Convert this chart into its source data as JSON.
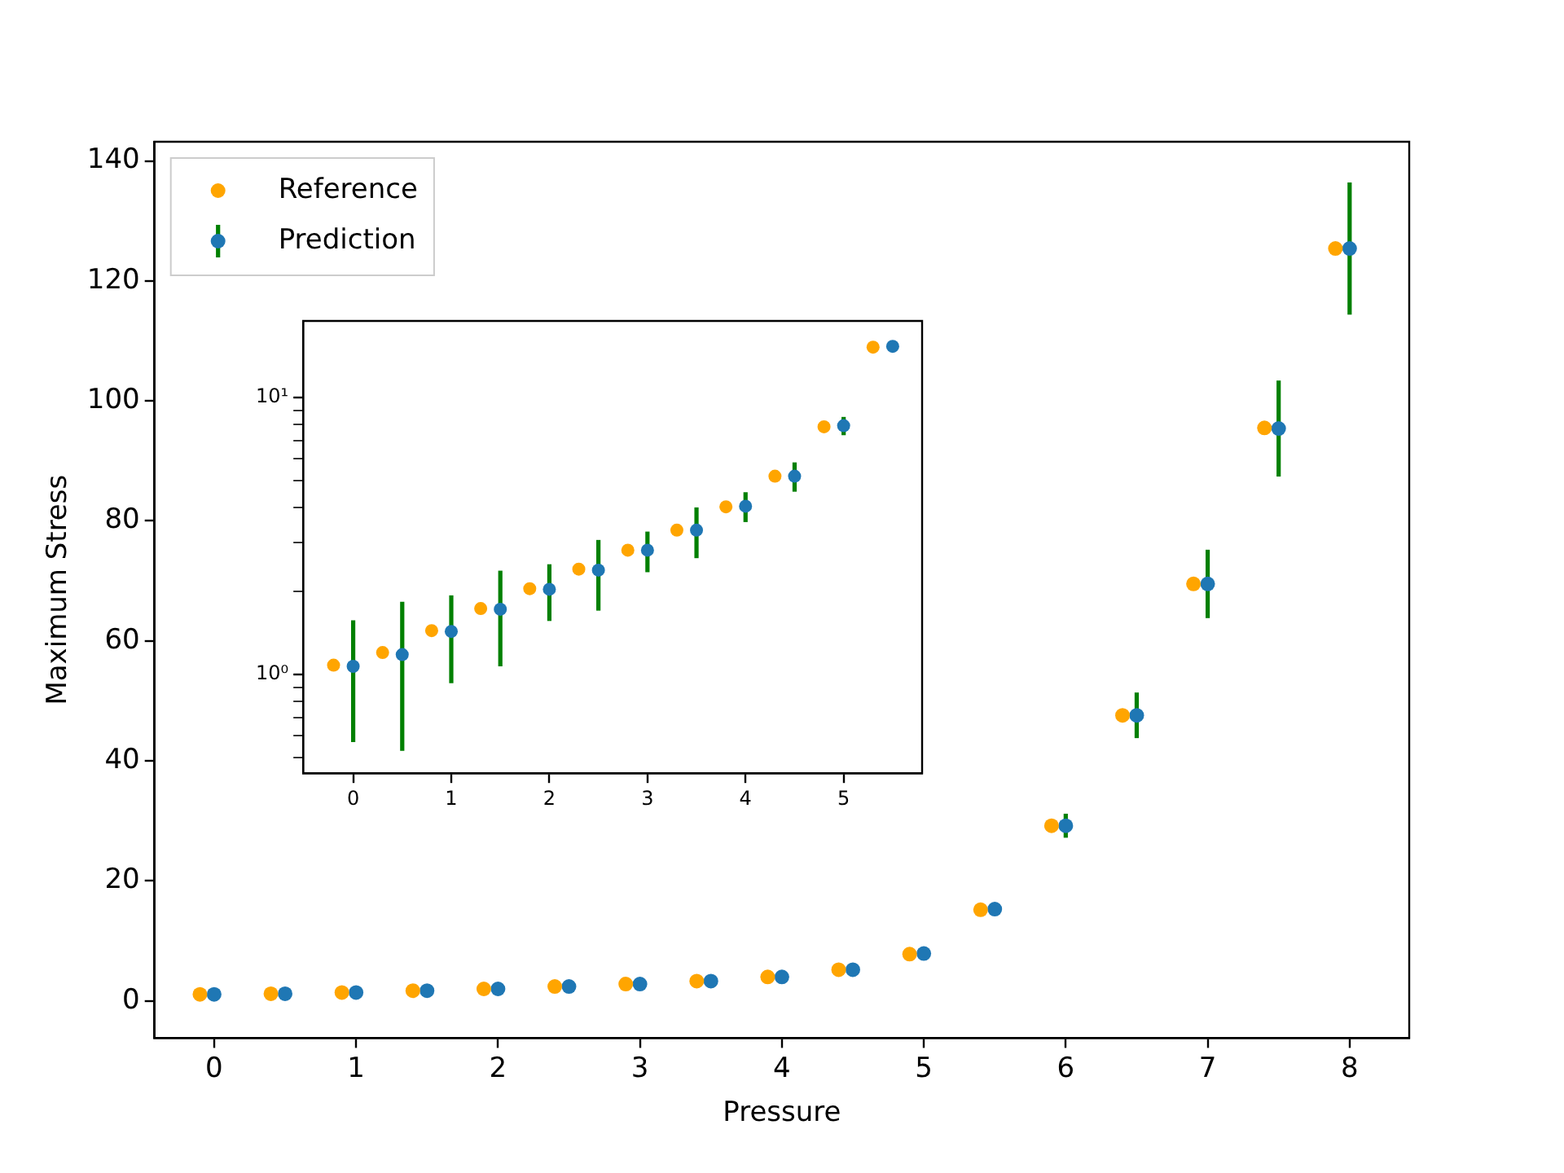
{
  "chart_data": [
    {
      "type": "scatter",
      "xlabel": "Pressure",
      "ylabel": "Maximum Stress",
      "xlim": [
        -0.42,
        8.42
      ],
      "ylim": [
        -6.2,
        143.2
      ],
      "xticks": [
        0,
        1,
        2,
        3,
        4,
        5,
        6,
        7,
        8
      ],
      "yticks": [
        0,
        20,
        40,
        60,
        80,
        100,
        120,
        140
      ],
      "legend": "top left",
      "marker": "circle",
      "grid": false,
      "series": [
        {
          "name": "Reference",
          "color": "#ffa500",
          "x": [
            -0.1,
            0.4,
            0.9,
            1.4,
            1.9,
            2.4,
            2.9,
            3.4,
            3.9,
            4.4,
            4.9,
            5.4,
            5.9,
            6.4,
            6.9,
            7.4,
            7.9
          ],
          "values": [
            1.1,
            1.2,
            1.4,
            1.7,
            2.0,
            2.4,
            2.8,
            3.3,
            4.0,
            5.2,
            7.8,
            15.2,
            29.2,
            47.6,
            69.5,
            95.5,
            125.4
          ]
        },
        {
          "name": "Prediction",
          "color": "#1f77b4",
          "x": [
            0,
            0.5,
            1,
            1.5,
            2,
            2.5,
            3,
            3.5,
            4,
            4.5,
            5,
            5.5,
            6,
            6.5,
            7,
            7.5,
            8
          ],
          "values": [
            1.1,
            1.2,
            1.4,
            1.7,
            2.0,
            2.4,
            2.8,
            3.3,
            4.0,
            5.2,
            7.9,
            15.3,
            29.2,
            47.6,
            69.5,
            95.4,
            125.4
          ],
          "errors": [
            null,
            null,
            null,
            null,
            null,
            null,
            null,
            null,
            null,
            null,
            null,
            null,
            2,
            3.8,
            5.7,
            8,
            11
          ]
        }
      ]
    },
    {
      "type": "scatter",
      "log": "y",
      "xlim": [
        -0.51,
        5.8
      ],
      "ylim": [
        0.44,
        18.9
      ],
      "xticks": [
        0,
        1,
        2,
        3,
        4,
        5
      ],
      "yticks": [
        {
          "value": 0.5,
          "label": null
        },
        {
          "value": 0.6,
          "label": null
        },
        {
          "value": 0.7,
          "label": null
        },
        {
          "value": 0.8,
          "label": null
        },
        {
          "value": 0.9,
          "label": null
        },
        {
          "value": 1,
          "label": "10⁰"
        },
        {
          "value": 2,
          "label": null
        },
        {
          "value": 3,
          "label": null
        },
        {
          "value": 4,
          "label": null
        },
        {
          "value": 5,
          "label": null
        },
        {
          "value": 6,
          "label": null
        },
        {
          "value": 7,
          "label": null
        },
        {
          "value": 8,
          "label": null
        },
        {
          "value": 9,
          "label": null
        },
        {
          "value": 10,
          "label": "10¹"
        }
      ],
      "marker": "circle",
      "grid": false,
      "series": [
        {
          "color": "#ffa500",
          "x": [
            -0.2,
            0.3,
            0.8,
            1.3,
            1.8,
            2.3,
            2.8,
            3.3,
            3.8,
            4.3,
            4.8,
            5.3
          ],
          "values": [
            1.08,
            1.2,
            1.44,
            1.73,
            2.04,
            2.4,
            2.81,
            3.32,
            4.03,
            5.2,
            7.84,
            15.2
          ]
        },
        {
          "color": "#1f77b4",
          "x": [
            0,
            0.5,
            1,
            1.5,
            2,
            2.5,
            3,
            3.5,
            4,
            4.5,
            5,
            5.5
          ],
          "values": [
            1.07,
            1.18,
            1.43,
            1.72,
            2.03,
            2.38,
            2.81,
            3.32,
            4.05,
            5.2,
            7.91,
            15.3
          ],
          "errors": [
            0.5,
            0.65,
            0.5,
            0.65,
            0.47,
            0.68,
            0.47,
            0.69,
            0.5,
            0.63,
            0.6,
            null
          ]
        }
      ]
    }
  ]
}
